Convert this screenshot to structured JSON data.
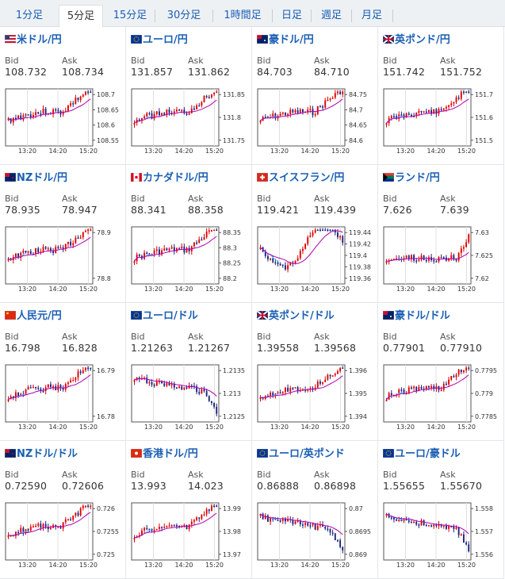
{
  "tabs": [
    "1分足",
    "5分足",
    "15分足",
    "30分足",
    "1時間足",
    "日足",
    "週足",
    "月足"
  ],
  "active_tab": 1,
  "labels": {
    "bid": "Bid",
    "ask": "Ask"
  },
  "pairs": [
    {
      "name": "米ドル/円",
      "bid": "108.732",
      "ask": "108.734",
      "flag": "us",
      "ticks": [
        "108.7",
        "108.65",
        "108.6",
        "108.55"
      ],
      "x_labels": [
        "13:20",
        "14:20",
        "15:20"
      ],
      "seed": 3,
      "trend": "up"
    },
    {
      "name": "ユーロ/円",
      "bid": "131.857",
      "ask": "131.862",
      "flag": "eu",
      "ticks": [
        "131.85",
        "131.8",
        "131.75"
      ],
      "x_labels": [
        "13:20",
        "14:20",
        "15:20"
      ],
      "seed": 5,
      "trend": "up"
    },
    {
      "name": "豪ドル/円",
      "bid": "84.703",
      "ask": "84.710",
      "flag": "au",
      "ticks": [
        "84.75",
        "84.7",
        "84.65",
        "84.6"
      ],
      "x_labels": [
        "13:20",
        "14:20",
        "15:20"
      ],
      "seed": 7,
      "trend": "up"
    },
    {
      "name": "英ポンド/円",
      "bid": "151.742",
      "ask": "151.752",
      "flag": "gb",
      "ticks": [
        "151.7",
        "151.6",
        "151.5"
      ],
      "x_labels": [
        "13:20",
        "14:20",
        "15:20"
      ],
      "seed": 11,
      "trend": "up"
    },
    {
      "name": "NZドル/円",
      "bid": "78.935",
      "ask": "78.947",
      "flag": "nz",
      "ticks": [
        "78.9",
        "78.8"
      ],
      "x_labels": [
        "13:20",
        "14:20",
        "15:20"
      ],
      "seed": 13,
      "trend": "up"
    },
    {
      "name": "カナダドル/円",
      "bid": "88.341",
      "ask": "88.358",
      "flag": "ca",
      "ticks": [
        "88.35",
        "88.3",
        "88.25",
        "88.2"
      ],
      "x_labels": [
        "13:20",
        "14:20",
        "15:20"
      ],
      "seed": 17,
      "trend": "up"
    },
    {
      "name": "スイスフラン/円",
      "bid": "119.421",
      "ask": "119.439",
      "flag": "ch",
      "ticks": [
        "119.44",
        "119.42",
        "119.4",
        "119.38",
        "119.36"
      ],
      "x_labels": [
        "13:20",
        "14:20",
        "15:20"
      ],
      "seed": 19,
      "trend": "mixed"
    },
    {
      "name": "ランド/円",
      "bid": "7.626",
      "ask": "7.639",
      "flag": "za",
      "ticks": [
        "7.63",
        "7.625",
        "7.62"
      ],
      "x_labels": [
        "13:20",
        "14:20",
        "15:20"
      ],
      "seed": 23,
      "trend": "flat"
    },
    {
      "name": "人民元/円",
      "bid": "16.798",
      "ask": "16.828",
      "flag": "cn",
      "ticks": [
        "16.79",
        "16.78"
      ],
      "x_labels": [
        "13:20",
        "14:20",
        "15:20"
      ],
      "seed": 29,
      "trend": "up"
    },
    {
      "name": "ユーロ/ドル",
      "bid": "1.21263",
      "ask": "1.21267",
      "flag": "eu",
      "ticks": [
        "1.2135",
        "1.213",
        "1.2125"
      ],
      "x_labels": [
        "13:20",
        "14:20",
        "15:20"
      ],
      "seed": 31,
      "trend": "down"
    },
    {
      "name": "英ポンド/ドル",
      "bid": "1.39558",
      "ask": "1.39568",
      "flag": "gb",
      "ticks": [
        "1.396",
        "1.395",
        "1.394"
      ],
      "x_labels": [
        "13:20",
        "14:20",
        "15:20"
      ],
      "seed": 37,
      "trend": "up"
    },
    {
      "name": "豪ドル/ドル",
      "bid": "0.77901",
      "ask": "0.77910",
      "flag": "au",
      "ticks": [
        "0.7795",
        "0.779",
        "0.7785"
      ],
      "x_labels": [
        "13:20",
        "14:20",
        "15:20"
      ],
      "seed": 41,
      "trend": "up"
    },
    {
      "name": "NZドル/ドル",
      "bid": "0.72590",
      "ask": "0.72606",
      "flag": "nz",
      "ticks": [
        "0.726",
        "0.7255",
        "0.725"
      ],
      "x_labels": [
        "13:20",
        "14:20",
        "15:20"
      ],
      "seed": 43,
      "trend": "up"
    },
    {
      "name": "香港ドル/円",
      "bid": "13.993",
      "ask": "14.023",
      "flag": "hk",
      "ticks": [
        "13.99",
        "13.98",
        "13.97"
      ],
      "x_labels": [
        "13:20",
        "14:20",
        "15:20"
      ],
      "seed": 47,
      "trend": "up"
    },
    {
      "name": "ユーロ/英ポンド",
      "bid": "0.86888",
      "ask": "0.86898",
      "flag": "eu",
      "ticks": [
        "0.87",
        "0.8695",
        "0.869"
      ],
      "x_labels": [
        "13:20",
        "14:20",
        "15:20"
      ],
      "seed": 53,
      "trend": "down"
    },
    {
      "name": "ユーロ/豪ドル",
      "bid": "1.55655",
      "ask": "1.55670",
      "flag": "eu",
      "ticks": [
        "1.558",
        "1.557",
        "1.556"
      ],
      "x_labels": [
        "13:20",
        "14:20",
        "15:20"
      ],
      "seed": 59,
      "trend": "down"
    }
  ],
  "colors": {
    "up": "#e00000",
    "down": "#1a237e",
    "ma": "#b000b0",
    "ma2": "#4fc3f7",
    "link": "#1a5fb4"
  }
}
